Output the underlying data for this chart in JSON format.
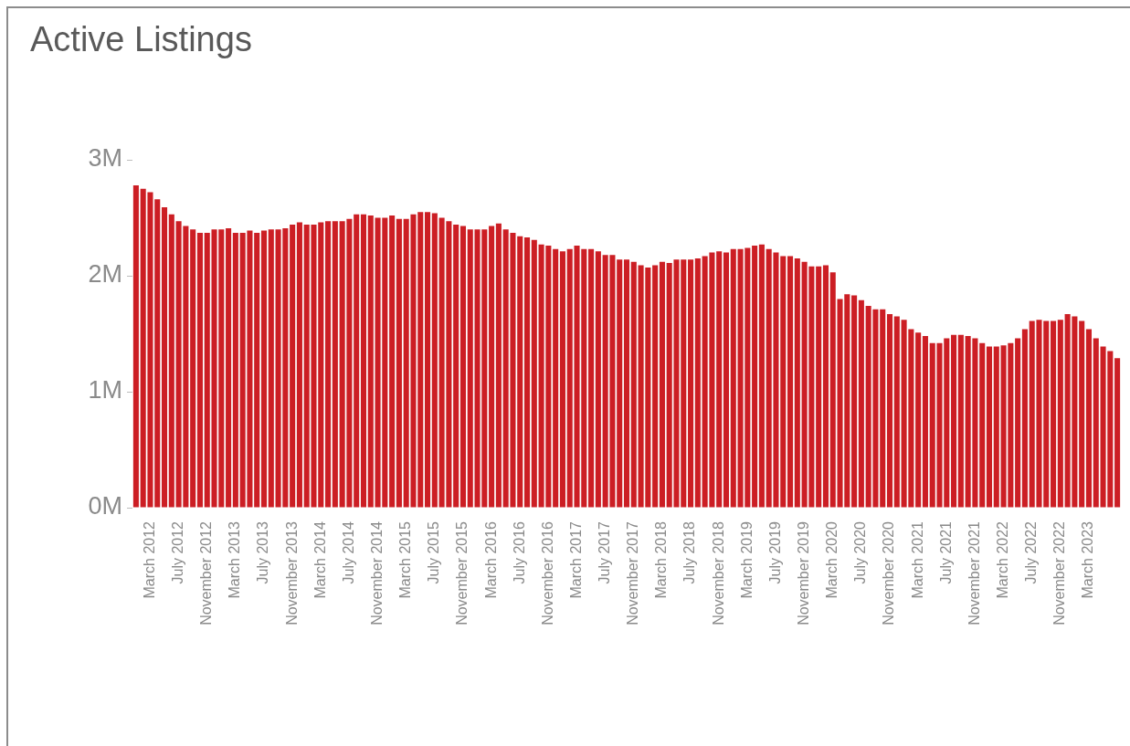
{
  "chart_data": {
    "type": "bar",
    "title": "Active Listings",
    "categories": [
      null,
      null,
      "March 2012",
      null,
      null,
      null,
      "July 2012",
      null,
      null,
      null,
      "November 2012",
      null,
      null,
      null,
      "March 2013",
      null,
      null,
      null,
      "July 2013",
      null,
      null,
      null,
      "November 2013",
      null,
      null,
      null,
      "March 2014",
      null,
      null,
      null,
      "July 2014",
      null,
      null,
      null,
      "November 2014",
      null,
      null,
      null,
      "March 2015",
      null,
      null,
      null,
      "July 2015",
      null,
      null,
      null,
      "November 2015",
      null,
      null,
      null,
      "March 2016",
      null,
      null,
      null,
      "July 2016",
      null,
      null,
      null,
      "November 2016",
      null,
      null,
      null,
      "March 2017",
      null,
      null,
      null,
      "July 2017",
      null,
      null,
      null,
      "November 2017",
      null,
      null,
      null,
      "March 2018",
      null,
      null,
      null,
      "July 2018",
      null,
      null,
      null,
      "November 2018",
      null,
      null,
      null,
      "March 2019",
      null,
      null,
      null,
      "July 2019",
      null,
      null,
      null,
      "November 2019",
      null,
      null,
      null,
      "March 2020",
      null,
      null,
      null,
      "July 2020",
      null,
      null,
      null,
      "November 2020",
      null,
      null,
      null,
      "March 2021",
      null,
      null,
      null,
      "July 2021",
      null,
      null,
      null,
      "November 2021",
      null,
      null,
      null,
      "March 2022",
      null,
      null,
      null,
      "July 2022",
      null,
      null,
      null,
      "November 2022",
      null,
      null,
      null,
      "March 2023",
      null,
      null,
      null,
      null
    ],
    "values": [
      2.78,
      2.75,
      2.72,
      2.66,
      2.59,
      2.53,
      2.47,
      2.43,
      2.4,
      2.37,
      2.37,
      2.4,
      2.4,
      2.41,
      2.37,
      2.37,
      2.39,
      2.37,
      2.39,
      2.4,
      2.4,
      2.41,
      2.44,
      2.46,
      2.44,
      2.44,
      2.46,
      2.47,
      2.47,
      2.47,
      2.49,
      2.53,
      2.53,
      2.52,
      2.5,
      2.5,
      2.52,
      2.49,
      2.49,
      2.53,
      2.55,
      2.55,
      2.54,
      2.5,
      2.47,
      2.44,
      2.43,
      2.4,
      2.4,
      2.4,
      2.43,
      2.45,
      2.4,
      2.37,
      2.34,
      2.33,
      2.31,
      2.27,
      2.26,
      2.23,
      2.21,
      2.23,
      2.26,
      2.23,
      2.23,
      2.21,
      2.18,
      2.18,
      2.14,
      2.14,
      2.12,
      2.09,
      2.07,
      2.09,
      2.12,
      2.11,
      2.14,
      2.14,
      2.14,
      2.15,
      2.17,
      2.2,
      2.21,
      2.2,
      2.23,
      2.23,
      2.24,
      2.26,
      2.27,
      2.23,
      2.2,
      2.17,
      2.17,
      2.15,
      2.12,
      2.08,
      2.08,
      2.09,
      2.03,
      1.8,
      1.84,
      1.83,
      1.79,
      1.74,
      1.71,
      1.71,
      1.67,
      1.65,
      1.62,
      1.54,
      1.51,
      1.48,
      1.42,
      1.42,
      1.46,
      1.49,
      1.49,
      1.48,
      1.46,
      1.42,
      1.39,
      1.39,
      1.4,
      1.42,
      1.46,
      1.54,
      1.61,
      1.62,
      1.61,
      1.61,
      1.62,
      1.67,
      1.65,
      1.61,
      1.54,
      1.46,
      1.39,
      1.35,
      1.29
    ],
    "color": "#cc1e24",
    "ylim": [
      0,
      3
    ],
    "yticks": [
      {
        "value": 0,
        "label": "0M"
      },
      {
        "value": 1,
        "label": "1M"
      },
      {
        "value": 2,
        "label": "2M"
      },
      {
        "value": 3,
        "label": "3M"
      }
    ],
    "grid": false,
    "legend": false
  }
}
